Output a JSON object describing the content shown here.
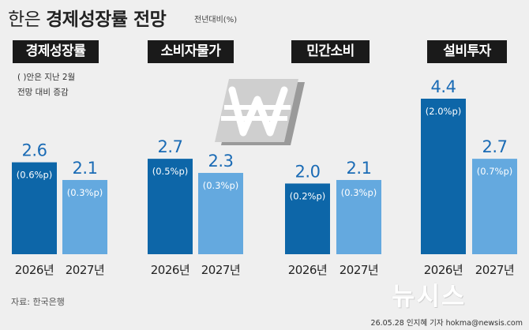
{
  "title": {
    "light": "한은",
    "bold": "경제성장률 전망"
  },
  "unit_label": "전년대비(%)",
  "note": {
    "line1": "( )안은 지난 2월",
    "line2": "전망 대비 증감"
  },
  "source": "자료: 한국은행",
  "logo": "뉴시스",
  "footer": "26.05.28 인지혜 기자 hokma@newsis.com",
  "colors": {
    "dark_bar": "#0d66a8",
    "light_bar": "#64a9df",
    "value_text": "#1a6bb5",
    "background": "#efefef"
  },
  "icon": "won-currency-icon",
  "chart_data": [
    {
      "type": "bar",
      "title": "경제성장률",
      "categories": [
        "2026년",
        "2027년"
      ],
      "values": [
        2.6,
        2.1
      ],
      "value_labels": [
        "2.6",
        "2.1"
      ],
      "changes": [
        "(0.6%p)",
        "(0.3%p)"
      ],
      "ylim": [
        0,
        4.4
      ]
    },
    {
      "type": "bar",
      "title": "소비자물가",
      "categories": [
        "2026년",
        "2027년"
      ],
      "values": [
        2.7,
        2.3
      ],
      "value_labels": [
        "2.7",
        "2.3"
      ],
      "changes": [
        "(0.5%p)",
        "(0.3%p)"
      ],
      "ylim": [
        0,
        4.4
      ]
    },
    {
      "type": "bar",
      "title": "민간소비",
      "categories": [
        "2026년",
        "2027년"
      ],
      "values": [
        2.0,
        2.1
      ],
      "value_labels": [
        "2.0",
        "2.1"
      ],
      "changes": [
        "(0.2%p)",
        "(0.3%p)"
      ],
      "ylim": [
        0,
        4.4
      ]
    },
    {
      "type": "bar",
      "title": "설비투자",
      "categories": [
        "2026년",
        "2027년"
      ],
      "values": [
        4.4,
        2.7
      ],
      "value_labels": [
        "4.4",
        "2.7"
      ],
      "changes": [
        "(2.0%p)",
        "(0.7%p)"
      ],
      "ylim": [
        0,
        4.4
      ]
    }
  ]
}
